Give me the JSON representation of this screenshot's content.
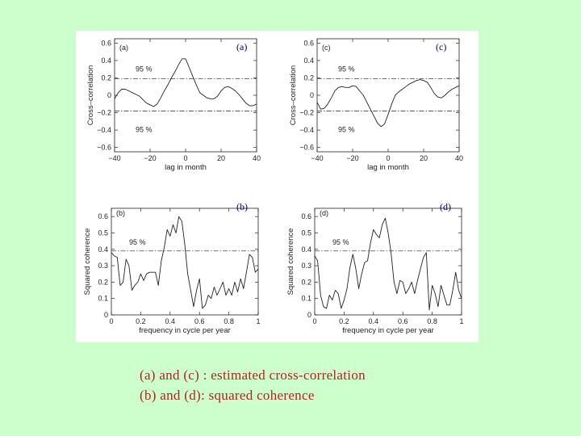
{
  "caption": {
    "line1": "(a) and (c) : estimated cross-correlation",
    "line2": "(b) and (d): squared coherence"
  },
  "chart_data": [
    {
      "type": "line",
      "panel": "a",
      "label": "(a)",
      "inner_label": "(a)",
      "xlabel": "lag in month",
      "ylabel": "Cross–correlation",
      "xlim": [
        -40,
        40
      ],
      "ylim": [
        -0.65,
        0.65
      ],
      "xticks": [
        "−40",
        "−20",
        "0",
        "20",
        "40"
      ],
      "yticks": [
        "0.6",
        "0.4",
        "0.2",
        "0",
        "−0.2",
        "−0.4",
        "−0.6"
      ],
      "threshold_label": "95 %",
      "thresholds": [
        0.19,
        -0.18
      ],
      "x": [
        -40,
        -38,
        -36,
        -34,
        -32,
        -30,
        -28,
        -26,
        -24,
        -22,
        -20,
        -18,
        -16,
        -14,
        -12,
        -10,
        -8,
        -6,
        -4,
        -2,
        0,
        2,
        4,
        6,
        8,
        10,
        12,
        14,
        16,
        18,
        20,
        22,
        24,
        26,
        28,
        30,
        32,
        34,
        36,
        38,
        40
      ],
      "y": [
        -0.04,
        0.03,
        0.07,
        0.07,
        0.05,
        0.03,
        0.01,
        -0.01,
        -0.05,
        -0.09,
        -0.11,
        -0.13,
        -0.1,
        -0.03,
        0.05,
        0.12,
        0.2,
        0.27,
        0.35,
        0.42,
        0.42,
        0.32,
        0.22,
        0.12,
        0.03,
        0.0,
        -0.03,
        -0.04,
        -0.04,
        -0.01,
        0.05,
        0.09,
        0.1,
        0.08,
        0.05,
        0.01,
        -0.04,
        -0.09,
        -0.12,
        -0.12,
        -0.1
      ]
    },
    {
      "type": "line",
      "panel": "c",
      "label": "(c)",
      "inner_label": "(c)",
      "xlabel": "lag in month",
      "ylabel": "Cross–correlation",
      "xlim": [
        -40,
        40
      ],
      "ylim": [
        -0.65,
        0.65
      ],
      "xticks": [
        "−40",
        "−20",
        "0",
        "20",
        "40"
      ],
      "yticks": [
        "0.6",
        "0.4",
        "0.2",
        "0",
        "−0.2",
        "−0.4",
        "−0.6"
      ],
      "threshold_label": "95 %",
      "thresholds": [
        0.19,
        -0.18
      ],
      "x": [
        -40,
        -38,
        -36,
        -34,
        -32,
        -30,
        -28,
        -26,
        -24,
        -22,
        -20,
        -18,
        -16,
        -14,
        -12,
        -10,
        -8,
        -6,
        -4,
        -2,
        0,
        2,
        4,
        6,
        8,
        10,
        12,
        14,
        16,
        18,
        20,
        22,
        24,
        26,
        28,
        30,
        32,
        34,
        36,
        38,
        40
      ],
      "y": [
        -0.08,
        -0.16,
        -0.15,
        -0.1,
        -0.03,
        0.05,
        0.09,
        0.1,
        0.09,
        0.09,
        0.11,
        0.1,
        0.05,
        0.0,
        -0.08,
        -0.16,
        -0.24,
        -0.32,
        -0.36,
        -0.33,
        -0.22,
        -0.1,
        0.0,
        0.04,
        0.07,
        0.1,
        0.13,
        0.15,
        0.17,
        0.18,
        0.17,
        0.15,
        0.09,
        0.02,
        -0.02,
        -0.03,
        0.0,
        0.04,
        0.07,
        0.09,
        0.11
      ]
    },
    {
      "type": "line",
      "panel": "b",
      "label": "(b)",
      "inner_label": "(b)",
      "xlabel": "frequency in cycle per year",
      "ylabel": "Squared coherence",
      "xlim": [
        0,
        1
      ],
      "ylim": [
        0,
        0.65
      ],
      "xticks": [
        "0",
        "0.2",
        "0.4",
        "0.6",
        "0.8",
        "1"
      ],
      "yticks": [
        "0.6",
        "0.5",
        "0.4",
        "0.3",
        "0.2",
        "0.1",
        "0"
      ],
      "threshold_label": "95 %",
      "thresholds": [
        0.39
      ],
      "x": [
        0,
        0.02,
        0.04,
        0.06,
        0.08,
        0.1,
        0.12,
        0.14,
        0.16,
        0.18,
        0.2,
        0.22,
        0.24,
        0.26,
        0.28,
        0.3,
        0.32,
        0.34,
        0.36,
        0.38,
        0.4,
        0.42,
        0.44,
        0.46,
        0.48,
        0.5,
        0.52,
        0.54,
        0.56,
        0.58,
        0.6,
        0.62,
        0.64,
        0.66,
        0.68,
        0.7,
        0.72,
        0.74,
        0.76,
        0.78,
        0.8,
        0.82,
        0.84,
        0.86,
        0.88,
        0.9,
        0.92,
        0.94,
        0.96,
        0.98,
        1.0
      ],
      "y": [
        0.38,
        0.36,
        0.35,
        0.18,
        0.2,
        0.34,
        0.3,
        0.15,
        0.18,
        0.2,
        0.25,
        0.21,
        0.25,
        0.26,
        0.26,
        0.26,
        0.18,
        0.33,
        0.41,
        0.52,
        0.48,
        0.55,
        0.5,
        0.6,
        0.57,
        0.43,
        0.25,
        0.15,
        0.05,
        0.15,
        0.22,
        0.04,
        0.06,
        0.12,
        0.1,
        0.17,
        0.12,
        0.16,
        0.2,
        0.12,
        0.16,
        0.12,
        0.2,
        0.14,
        0.22,
        0.16,
        0.26,
        0.37,
        0.35,
        0.26,
        0.28
      ]
    },
    {
      "type": "line",
      "panel": "d",
      "label": "(d)",
      "inner_label": "(d)",
      "xlabel": "frequency in cycle per year",
      "ylabel": "Squared coherence",
      "xlim": [
        0,
        1
      ],
      "ylim": [
        0,
        0.65
      ],
      "xticks": [
        "0",
        "0.2",
        "0.4",
        "0.6",
        "0.8",
        "1"
      ],
      "yticks": [
        "0.6",
        "0.5",
        "0.4",
        "0.3",
        "0.2",
        "0.1",
        "0"
      ],
      "threshold_label": "95 %",
      "thresholds": [
        0.39
      ],
      "x": [
        0,
        0.02,
        0.04,
        0.06,
        0.08,
        0.1,
        0.12,
        0.14,
        0.16,
        0.18,
        0.2,
        0.22,
        0.24,
        0.26,
        0.28,
        0.3,
        0.32,
        0.34,
        0.36,
        0.38,
        0.4,
        0.42,
        0.44,
        0.46,
        0.48,
        0.5,
        0.52,
        0.54,
        0.56,
        0.58,
        0.6,
        0.62,
        0.64,
        0.66,
        0.68,
        0.7,
        0.72,
        0.74,
        0.76,
        0.78,
        0.8,
        0.82,
        0.84,
        0.86,
        0.88,
        0.9,
        0.92,
        0.94,
        0.96,
        0.98,
        1.0
      ],
      "y": [
        0.36,
        0.33,
        0.12,
        0.05,
        0.04,
        0.12,
        0.09,
        0.15,
        0.13,
        0.04,
        0.09,
        0.16,
        0.29,
        0.37,
        0.28,
        0.16,
        0.25,
        0.32,
        0.33,
        0.44,
        0.52,
        0.49,
        0.47,
        0.55,
        0.59,
        0.5,
        0.38,
        0.2,
        0.13,
        0.21,
        0.2,
        0.13,
        0.16,
        0.2,
        0.13,
        0.21,
        0.28,
        0.35,
        0.38,
        0.03,
        0.18,
        0.13,
        0.05,
        0.18,
        0.12,
        0.06,
        0.06,
        0.15,
        0.26,
        0.15,
        0.1
      ]
    }
  ]
}
